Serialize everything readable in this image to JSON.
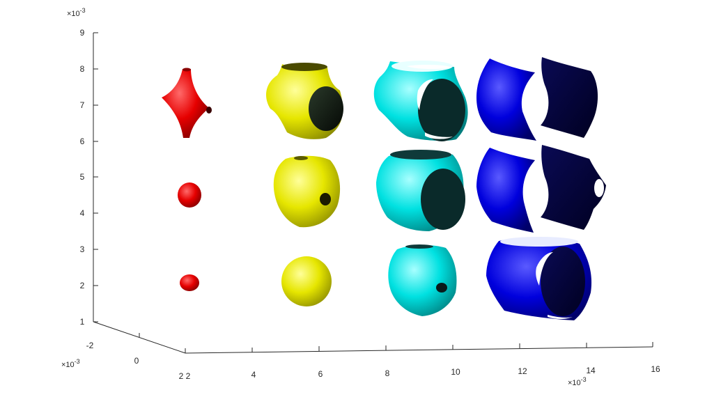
{
  "chart_data": {
    "type": "3d-surface",
    "title": "",
    "axes": {
      "x": {
        "ticks": [
          "2",
          "4",
          "6",
          "8",
          "10",
          "12",
          "14",
          "16"
        ],
        "exponent": "×10",
        "exponent_power": "-3"
      },
      "y": {
        "ticks": [
          "-2",
          "0",
          "2"
        ],
        "exponent": "×10",
        "exponent_power": "-3"
      },
      "z": {
        "ticks": [
          "1",
          "2",
          "3",
          "4",
          "5",
          "6",
          "7",
          "8",
          "9"
        ],
        "exponent": "×10",
        "exponent_power": "-3"
      }
    },
    "grid": false,
    "shapes": [
      {
        "row": 3,
        "col": 1,
        "kind": "blob",
        "color": "#ff0000"
      },
      {
        "row": 3,
        "col": 2,
        "kind": "blob",
        "color": "#ffff00"
      },
      {
        "row": 3,
        "col": 3,
        "kind": "blob-hole",
        "color": "#00ffff"
      },
      {
        "row": 3,
        "col": 4,
        "kind": "open-cylinder",
        "color": "#0000ff"
      },
      {
        "row": 2,
        "col": 1,
        "kind": "blob",
        "color": "#ff0000"
      },
      {
        "row": 2,
        "col": 2,
        "kind": "blob-hole",
        "color": "#ffff00"
      },
      {
        "row": 2,
        "col": 3,
        "kind": "big-hole",
        "color": "#00ffff"
      },
      {
        "row": 2,
        "col": 4,
        "kind": "split-sheets-notch",
        "color": "#0000ff"
      },
      {
        "row": 1,
        "col": 1,
        "kind": "star",
        "color": "#ff0000"
      },
      {
        "row": 1,
        "col": 2,
        "kind": "big-hole",
        "color": "#ffff00"
      },
      {
        "row": 1,
        "col": 3,
        "kind": "open-cylinder",
        "color": "#00ffff"
      },
      {
        "row": 1,
        "col": 4,
        "kind": "split-sheets",
        "color": "#0000ff"
      }
    ]
  }
}
